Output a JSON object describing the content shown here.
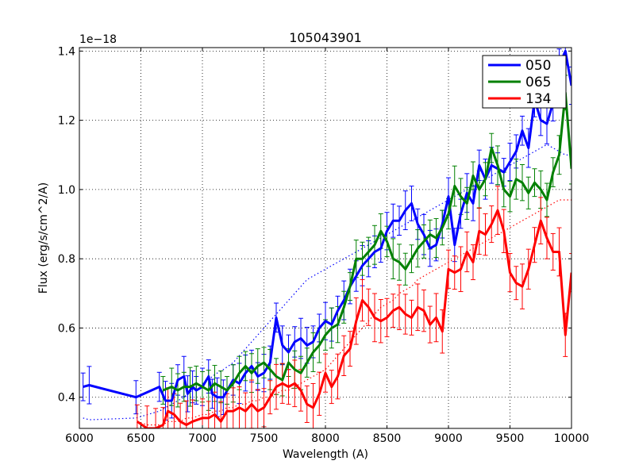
{
  "chart_data": {
    "type": "line",
    "title": "105043901",
    "xlabel": "Wavelength (A)",
    "ylabel": "Flux (erg/s/cm^2/A)",
    "y_offset_label": "1e−18",
    "xlim": [
      6000,
      10000
    ],
    "ylim": [
      0.31,
      1.41
    ],
    "xticks": [
      6000,
      6500,
      7000,
      7500,
      8000,
      8500,
      9000,
      9500,
      10000
    ],
    "xtick_labels": [
      "6000",
      "6500",
      "7000",
      "7500",
      "8000",
      "8500",
      "9000",
      "9500",
      "10000"
    ],
    "yticks": [
      0.4,
      0.6,
      0.8,
      1.0,
      1.2,
      1.4
    ],
    "ytick_labels": [
      "0.4",
      "0.6",
      "0.8",
      "1.0",
      "1.2",
      "1.4"
    ],
    "grid": true,
    "legend_position": "top-right",
    "series": [
      {
        "name": "050",
        "color": "#0000ff",
        "x": [
          6030,
          6080,
          6460,
          6650,
          6700,
          6750,
          6800,
          6850,
          6880,
          6920,
          6950,
          7000,
          7050,
          7080,
          7120,
          7170,
          7250,
          7300,
          7350,
          7400,
          7450,
          7500,
          7550,
          7600,
          7650,
          7700,
          7750,
          7800,
          7850,
          7900,
          7950,
          8000,
          8050,
          8100,
          8150,
          8200,
          8250,
          8300,
          8350,
          8400,
          8450,
          8500,
          8550,
          8600,
          8650,
          8700,
          8750,
          8800,
          8850,
          8900,
          8950,
          9000,
          9050,
          9100,
          9150,
          9200,
          9250,
          9300,
          9350,
          9400,
          9450,
          9500,
          9550,
          9600,
          9650,
          9700,
          9750,
          9800,
          9850,
          9900,
          9950,
          10000
        ],
        "y": [
          0.43,
          0.435,
          0.4,
          0.43,
          0.39,
          0.39,
          0.45,
          0.46,
          0.41,
          0.43,
          0.42,
          0.43,
          0.46,
          0.41,
          0.4,
          0.4,
          0.45,
          0.44,
          0.47,
          0.49,
          0.46,
          0.47,
          0.5,
          0.63,
          0.55,
          0.53,
          0.56,
          0.57,
          0.55,
          0.56,
          0.6,
          0.62,
          0.61,
          0.65,
          0.68,
          0.72,
          0.75,
          0.78,
          0.8,
          0.82,
          0.83,
          0.88,
          0.91,
          0.91,
          0.94,
          0.96,
          0.9,
          0.87,
          0.83,
          0.84,
          0.9,
          0.98,
          0.84,
          0.93,
          0.99,
          0.96,
          1.07,
          1.03,
          1.07,
          1.06,
          1.05,
          1.08,
          1.11,
          1.17,
          1.12,
          1.26,
          1.2,
          1.19,
          1.25,
          1.36,
          1.4,
          1.3
        ],
        "error": 0.05,
        "model_y": [
          0.34,
          0.335,
          0.34,
          0.36,
          0.37,
          0.38,
          0.39,
          0.4,
          0.41,
          0.42,
          0.43,
          0.44,
          0.45,
          0.46,
          0.47,
          0.48,
          0.5,
          0.52,
          0.54,
          0.56,
          0.58,
          0.6,
          0.62,
          0.64,
          0.66,
          0.68,
          0.7,
          0.72,
          0.74,
          0.75,
          0.76,
          0.77,
          0.78,
          0.79,
          0.8,
          0.81,
          0.82,
          0.83,
          0.84,
          0.85,
          0.86,
          0.87,
          0.88,
          0.89,
          0.9,
          0.91,
          0.92,
          0.93,
          0.94,
          0.95,
          0.96,
          0.97,
          0.98,
          0.99,
          1.0,
          1.01,
          1.02,
          1.03,
          1.04,
          1.05,
          1.06,
          1.07,
          1.08,
          1.09,
          1.1,
          1.11,
          1.12,
          1.13,
          1.12,
          1.11,
          1.1,
          1.1
        ]
      },
      {
        "name": "065",
        "color": "#008000",
        "x": [
          6680,
          6750,
          6800,
          6850,
          6900,
          6950,
          7000,
          7050,
          7100,
          7150,
          7200,
          7250,
          7300,
          7350,
          7400,
          7450,
          7500,
          7550,
          7600,
          7650,
          7700,
          7750,
          7800,
          7850,
          7900,
          7950,
          8000,
          8050,
          8100,
          8150,
          8200,
          8250,
          8300,
          8350,
          8400,
          8450,
          8500,
          8550,
          8600,
          8650,
          8700,
          8750,
          8800,
          8850,
          8900,
          8950,
          9000,
          9050,
          9100,
          9150,
          9200,
          9250,
          9300,
          9350,
          9400,
          9450,
          9500,
          9550,
          9600,
          9650,
          9700,
          9750,
          9800,
          9850,
          9900,
          9950,
          10000
        ],
        "y": [
          0.42,
          0.43,
          0.42,
          0.43,
          0.43,
          0.44,
          0.43,
          0.42,
          0.44,
          0.43,
          0.42,
          0.44,
          0.47,
          0.49,
          0.47,
          0.49,
          0.5,
          0.48,
          0.46,
          0.45,
          0.5,
          0.48,
          0.47,
          0.5,
          0.53,
          0.55,
          0.58,
          0.6,
          0.61,
          0.66,
          0.72,
          0.8,
          0.8,
          0.82,
          0.84,
          0.88,
          0.85,
          0.8,
          0.79,
          0.77,
          0.8,
          0.83,
          0.85,
          0.87,
          0.86,
          0.89,
          0.93,
          1.01,
          0.98,
          0.96,
          1.04,
          1.0,
          1.03,
          1.12,
          1.07,
          1.0,
          0.98,
          1.03,
          1.02,
          0.99,
          1.02,
          1.0,
          0.97,
          1.05,
          1.1,
          1.28,
          1.06
        ],
        "error": 0.05
      },
      {
        "name": "134",
        "color": "#ff0000",
        "x": [
          6470,
          6550,
          6620,
          6680,
          6720,
          6770,
          6820,
          6870,
          6920,
          7000,
          7050,
          7100,
          7150,
          7200,
          7250,
          7300,
          7350,
          7400,
          7450,
          7500,
          7550,
          7600,
          7650,
          7700,
          7750,
          7800,
          7850,
          7900,
          7950,
          8000,
          8050,
          8100,
          8150,
          8200,
          8250,
          8300,
          8350,
          8400,
          8450,
          8500,
          8550,
          8600,
          8650,
          8700,
          8750,
          8800,
          8850,
          8900,
          8950,
          9000,
          9050,
          9100,
          9150,
          9200,
          9250,
          9300,
          9350,
          9400,
          9450,
          9500,
          9550,
          9600,
          9650,
          9700,
          9750,
          9800,
          9850,
          9900,
          9950,
          10000
        ],
        "y": [
          0.33,
          0.31,
          0.31,
          0.32,
          0.36,
          0.35,
          0.33,
          0.32,
          0.33,
          0.34,
          0.34,
          0.35,
          0.33,
          0.36,
          0.36,
          0.37,
          0.36,
          0.38,
          0.36,
          0.37,
          0.4,
          0.43,
          0.44,
          0.43,
          0.44,
          0.42,
          0.38,
          0.37,
          0.41,
          0.47,
          0.43,
          0.46,
          0.52,
          0.54,
          0.62,
          0.68,
          0.66,
          0.63,
          0.62,
          0.63,
          0.65,
          0.66,
          0.64,
          0.63,
          0.66,
          0.65,
          0.61,
          0.63,
          0.59,
          0.77,
          0.76,
          0.77,
          0.82,
          0.79,
          0.88,
          0.87,
          0.9,
          0.94,
          0.88,
          0.76,
          0.73,
          0.72,
          0.77,
          0.84,
          0.91,
          0.86,
          0.82,
          0.82,
          0.58,
          0.76
        ],
        "error": 0.06,
        "model_y": [
          0.33,
          0.32,
          0.32,
          0.32,
          0.33,
          0.33,
          0.33,
          0.34,
          0.34,
          0.35,
          0.35,
          0.36,
          0.36,
          0.37,
          0.37,
          0.38,
          0.38,
          0.39,
          0.39,
          0.4,
          0.4,
          0.41,
          0.42,
          0.42,
          0.43,
          0.44,
          0.45,
          0.46,
          0.47,
          0.48,
          0.5,
          0.52,
          0.54,
          0.56,
          0.58,
          0.6,
          0.62,
          0.64,
          0.66,
          0.67,
          0.68,
          0.7,
          0.71,
          0.72,
          0.74,
          0.75,
          0.76,
          0.77,
          0.78,
          0.79,
          0.8,
          0.81,
          0.82,
          0.83,
          0.84,
          0.85,
          0.86,
          0.87,
          0.88,
          0.89,
          0.9,
          0.91,
          0.92,
          0.93,
          0.94,
          0.95,
          0.96,
          0.97,
          0.97,
          0.97
        ]
      }
    ]
  }
}
